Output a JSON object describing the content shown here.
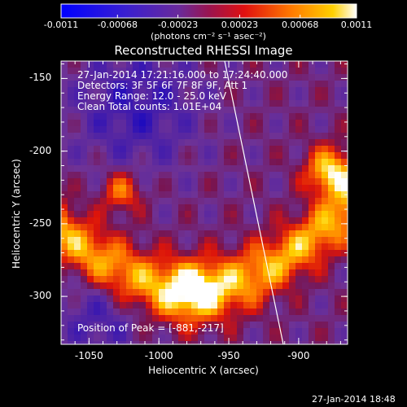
{
  "colorbar": {
    "tick_labels": [
      "-0.0011",
      "-0.00068",
      "-0.00023",
      "0.00023",
      "0.00068",
      "0.0011"
    ],
    "unit_label": "(photons cm⁻² s⁻¹ asec⁻²)",
    "range": [
      -0.0011,
      0.0011
    ]
  },
  "plot": {
    "title": "Reconstructed RHESSI Image",
    "info_lines": [
      "27-Jan-2014 17:21:16.000 to 17:24:40.000",
      "Detectors: 3F 5F 6F 7F 8F 9F, Att 1",
      "Energy Range: 12.0 - 25.0 keV",
      "Clean     Total counts: 1.01E+04"
    ],
    "peak_label": "Position of Peak = [-881,-217]",
    "xlabel": "Heliocentric X (arcsec)",
    "ylabel": "Heliocentric Y (arcsec)",
    "x_ticks": [
      "-1050",
      "-1000",
      "-950",
      "-900"
    ],
    "y_ticks": [
      "-150",
      "-200",
      "-250",
      "-300"
    ],
    "xlim": [
      -1070,
      -865
    ],
    "ylim": [
      -333,
      -138
    ],
    "peak": [
      -881,
      -217
    ]
  },
  "footer": {
    "timestamp": "27-Jan-2014 18:48"
  },
  "colors": {
    "background": "#000000",
    "foreground": "#ffffff",
    "colormap": "blue-purple-red-yellow-white"
  }
}
